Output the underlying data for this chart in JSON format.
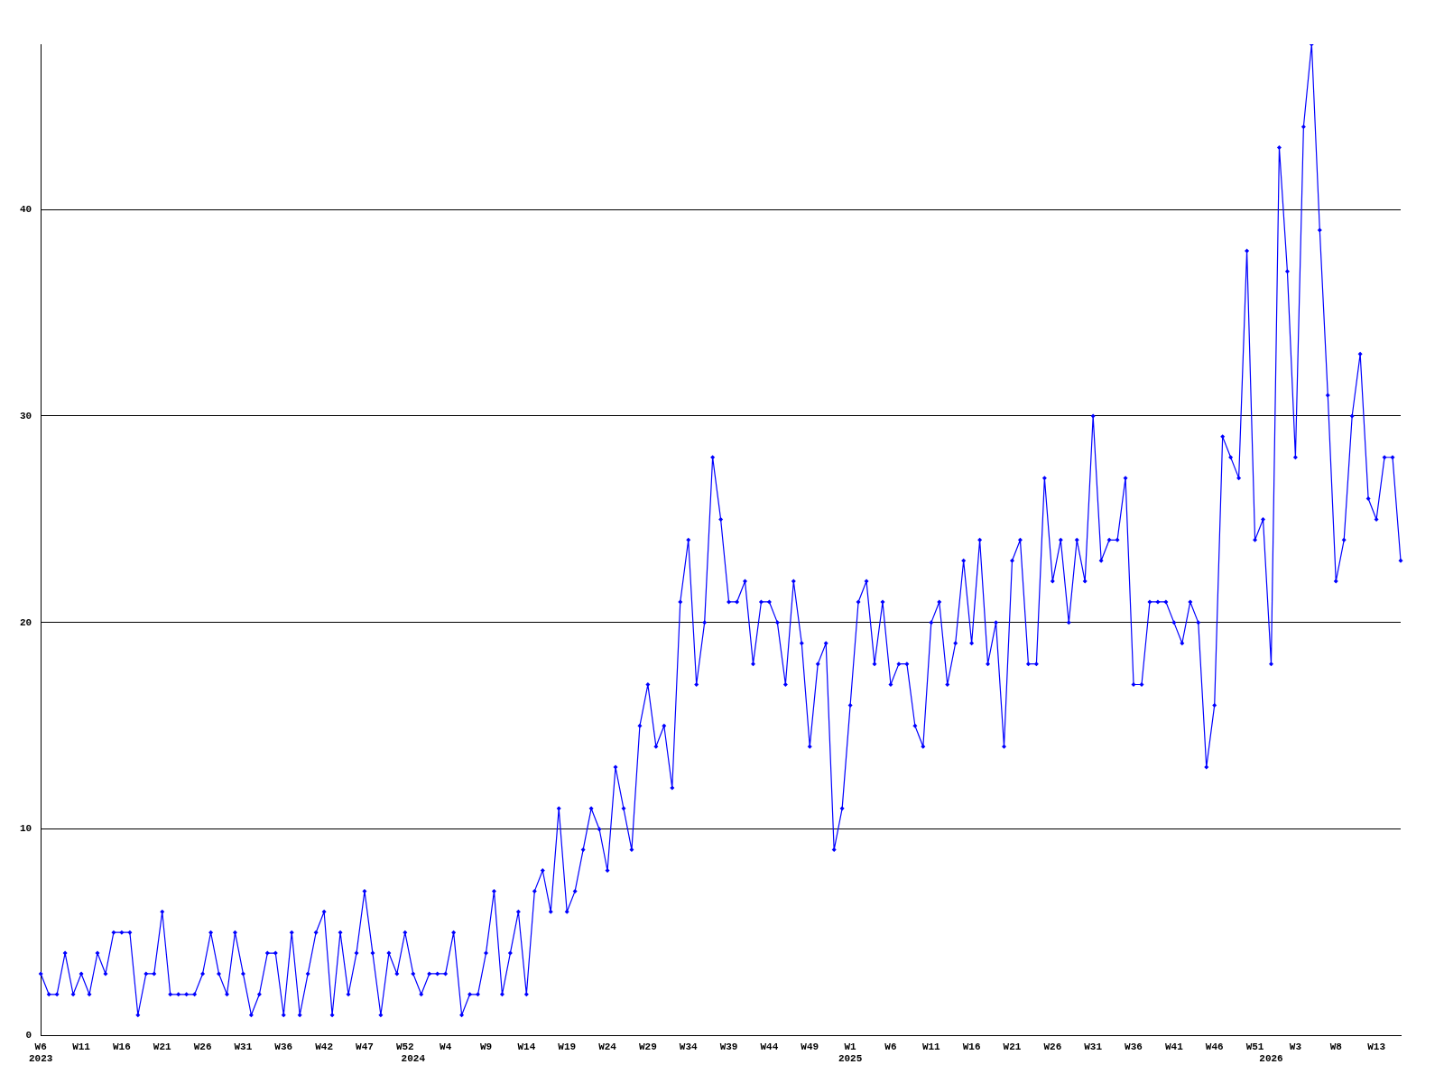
{
  "chart_data": {
    "type": "line",
    "categories": [
      "W6\n2023",
      null,
      null,
      null,
      null,
      "W11",
      null,
      null,
      null,
      null,
      "W16",
      null,
      null,
      null,
      null,
      "W21",
      null,
      null,
      null,
      null,
      "W26",
      null,
      null,
      null,
      null,
      "W31",
      null,
      null,
      null,
      null,
      "W36",
      null,
      null,
      null,
      null,
      "W42",
      null,
      null,
      null,
      null,
      "W47",
      null,
      null,
      null,
      null,
      "W52",
      "\n2024",
      null,
      null,
      null,
      "W4",
      null,
      null,
      null,
      null,
      "W9",
      null,
      null,
      null,
      null,
      "W14",
      null,
      null,
      null,
      null,
      "W19",
      null,
      null,
      null,
      null,
      "W24",
      null,
      null,
      null,
      null,
      "W29",
      null,
      null,
      null,
      null,
      "W34",
      null,
      null,
      null,
      null,
      "W39",
      null,
      null,
      null,
      null,
      "W44",
      null,
      null,
      null,
      null,
      "W49",
      null,
      null,
      null,
      null,
      "W1\n2025",
      null,
      null,
      null,
      null,
      "W6",
      null,
      null,
      null,
      null,
      "W11",
      null,
      null,
      null,
      null,
      "W16",
      null,
      null,
      null,
      null,
      "W21",
      null,
      null,
      null,
      null,
      "W26",
      null,
      null,
      null,
      null,
      "W31",
      null,
      null,
      null,
      null,
      "W36",
      null,
      null,
      null,
      null,
      "W41",
      null,
      null,
      null,
      null,
      "W46",
      null,
      null,
      null,
      null,
      "W51",
      null,
      "\n2026",
      null,
      null,
      "W3",
      null,
      null,
      null,
      null,
      "W8",
      null,
      null,
      null,
      null,
      "W13",
      null,
      null,
      null
    ],
    "series": [
      {
        "color": "#0000ff",
        "values": [
          3,
          2,
          2,
          4,
          2,
          3,
          2,
          4,
          3,
          5,
          5,
          5,
          1,
          3,
          3,
          6,
          2,
          2,
          2,
          2,
          3,
          5,
          3,
          2,
          5,
          3,
          1,
          2,
          4,
          4,
          1,
          5,
          1,
          3,
          5,
          6,
          1,
          5,
          2,
          4,
          7,
          4,
          1,
          4,
          3,
          5,
          3,
          2,
          3,
          3,
          3,
          5,
          1,
          2,
          2,
          4,
          7,
          2,
          4,
          6,
          2,
          7,
          8,
          6,
          11,
          6,
          7,
          9,
          11,
          10,
          8,
          13,
          11,
          9,
          15,
          17,
          14,
          15,
          12,
          21,
          24,
          17,
          20,
          28,
          25,
          21,
          21,
          22,
          18,
          21,
          21,
          20,
          17,
          22,
          19,
          14,
          18,
          19,
          9,
          11,
          16,
          21,
          22,
          18,
          21,
          17,
          18,
          18,
          15,
          14,
          20,
          21,
          17,
          19,
          23,
          19,
          24,
          18,
          20,
          14,
          23,
          24,
          18,
          18,
          27,
          22,
          24,
          20,
          24,
          22,
          30,
          23,
          24,
          24,
          27,
          17,
          17,
          21,
          21,
          21,
          20,
          19,
          21,
          20,
          13,
          16,
          29,
          28,
          27,
          38,
          24,
          25,
          18,
          43,
          37,
          28,
          44,
          48,
          39,
          31,
          22,
          24,
          30,
          33,
          26,
          25,
          28,
          28,
          23
        ]
      }
    ],
    "ylim": [
      0,
      48
    ],
    "yticks": [
      0,
      10,
      20,
      30,
      40
    ],
    "grid": "y",
    "legend": false,
    "marker": "diamond",
    "line_style": "solid"
  }
}
